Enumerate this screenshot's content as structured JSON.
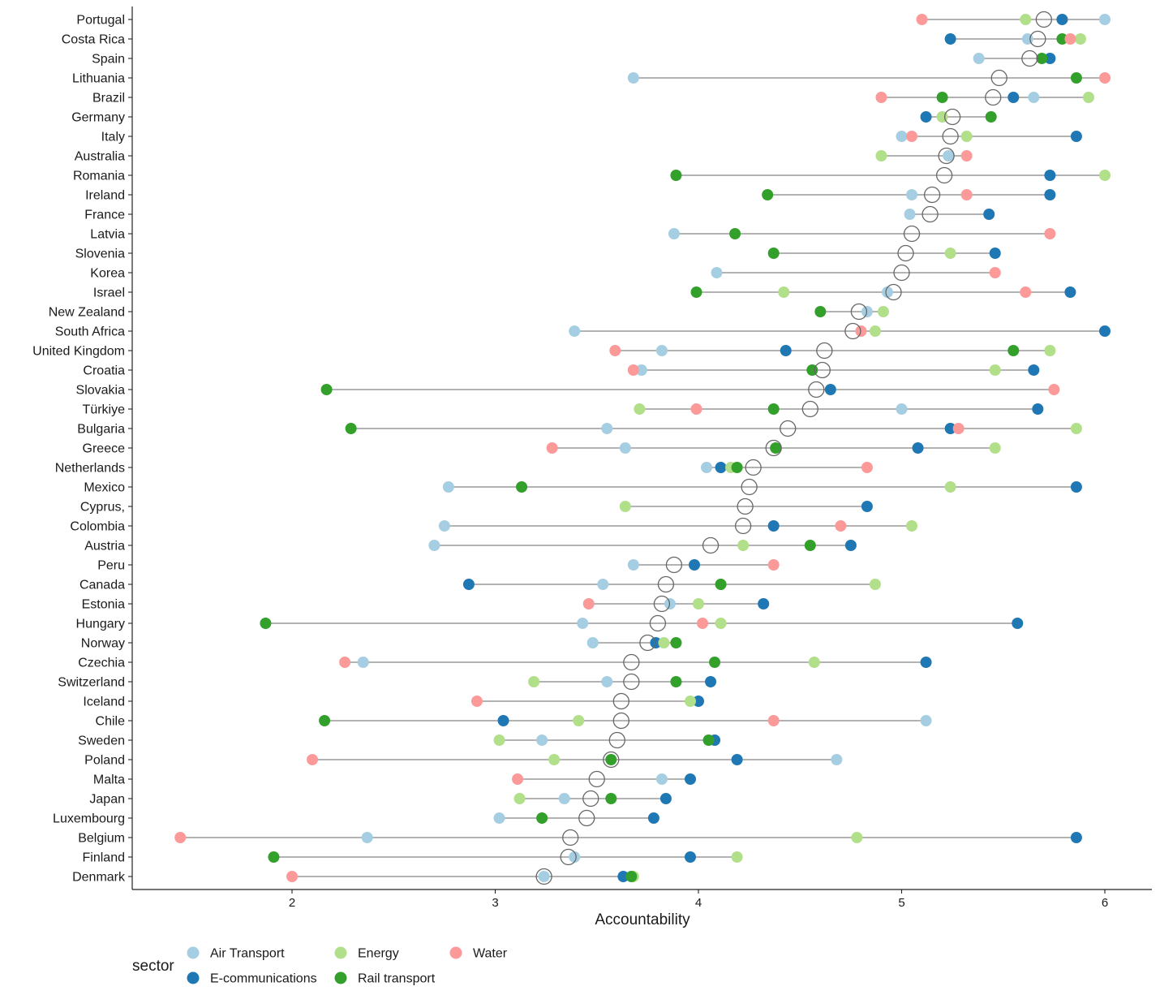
{
  "chart_data": {
    "type": "scatter",
    "xlabel": "Accountability",
    "ylabel": "",
    "title": "",
    "xlim": [
      1.2,
      6.23
    ],
    "xticks": [
      2,
      3,
      4,
      5,
      6
    ],
    "legend": {
      "title": "sector",
      "placement": "bottom-left",
      "items": [
        {
          "key": "air",
          "label": "Air Transport",
          "color": "#a6cee3"
        },
        {
          "key": "ecom",
          "label": "E-communications",
          "color": "#1f78b4"
        },
        {
          "key": "energy",
          "label": "Energy",
          "color": "#b2df8a"
        },
        {
          "key": "rail",
          "label": "Rail transport",
          "color": "#33a02c"
        },
        {
          "key": "water",
          "label": "Water",
          "color": "#fb9a99"
        }
      ]
    },
    "mean_marker": "hollow-circle",
    "rows": [
      {
        "country": "Portugal",
        "mean": 5.7,
        "air": 6.0,
        "ecom": 5.79,
        "energy": 5.61,
        "rail": null,
        "water": 5.1
      },
      {
        "country": "Costa Rica",
        "mean": 5.67,
        "air": 5.62,
        "ecom": 5.24,
        "energy": 5.88,
        "rail": 5.79,
        "water": 5.83
      },
      {
        "country": "Spain",
        "mean": 5.63,
        "air": 5.38,
        "ecom": 5.73,
        "energy": null,
        "rail": 5.69,
        "water": null
      },
      {
        "country": "Lithuania",
        "mean": 5.48,
        "air": 3.68,
        "ecom": null,
        "energy": null,
        "rail": 5.86,
        "water": 6.0
      },
      {
        "country": "Brazil",
        "mean": 5.45,
        "air": 5.65,
        "ecom": 5.55,
        "energy": 5.92,
        "rail": 5.2,
        "water": 4.9
      },
      {
        "country": "Germany",
        "mean": 5.25,
        "air": null,
        "ecom": 5.12,
        "energy": 5.2,
        "rail": 5.44,
        "water": null
      },
      {
        "country": "Italy",
        "mean": 5.24,
        "air": 5.0,
        "ecom": 5.86,
        "energy": 5.32,
        "rail": null,
        "water": 5.05
      },
      {
        "country": "Australia",
        "mean": 5.22,
        "air": 5.23,
        "ecom": null,
        "energy": 4.9,
        "rail": null,
        "water": 5.32
      },
      {
        "country": "Romania",
        "mean": 5.21,
        "air": null,
        "ecom": 5.73,
        "energy": 6.0,
        "rail": 3.89,
        "water": null
      },
      {
        "country": "Ireland",
        "mean": 5.15,
        "air": 5.05,
        "ecom": 5.73,
        "energy": null,
        "rail": 4.34,
        "water": 5.32
      },
      {
        "country": "France",
        "mean": 5.14,
        "air": 5.04,
        "ecom": 5.43,
        "energy": null,
        "rail": null,
        "water": null
      },
      {
        "country": "Latvia",
        "mean": 5.05,
        "air": 3.88,
        "ecom": null,
        "energy": null,
        "rail": 4.18,
        "water": 5.73
      },
      {
        "country": "Slovenia",
        "mean": 5.02,
        "air": null,
        "ecom": 5.46,
        "energy": 5.24,
        "rail": 4.37,
        "water": null
      },
      {
        "country": "Korea",
        "mean": 5.0,
        "air": 4.09,
        "ecom": null,
        "energy": null,
        "rail": null,
        "water": 5.46
      },
      {
        "country": "Israel",
        "mean": 4.96,
        "air": 4.93,
        "ecom": 5.83,
        "energy": 4.42,
        "rail": 3.99,
        "water": 5.61
      },
      {
        "country": "New Zealand",
        "mean": 4.79,
        "air": 4.83,
        "ecom": null,
        "energy": 4.91,
        "rail": 4.6,
        "water": null
      },
      {
        "country": "South Africa",
        "mean": 4.76,
        "air": 3.39,
        "ecom": 6.0,
        "energy": 4.87,
        "rail": null,
        "water": 4.8
      },
      {
        "country": "United Kingdom",
        "mean": 4.62,
        "air": 3.82,
        "ecom": 4.43,
        "energy": 5.73,
        "rail": 5.55,
        "water": 3.59
      },
      {
        "country": "Croatia",
        "mean": 4.61,
        "air": 3.72,
        "ecom": 5.65,
        "energy": 5.46,
        "rail": 4.56,
        "water": 3.68
      },
      {
        "country": "Slovakia",
        "mean": 4.58,
        "air": null,
        "ecom": 4.65,
        "energy": null,
        "rail": 2.17,
        "water": 5.75
      },
      {
        "country": "Türkiye",
        "mean": 4.55,
        "air": 5.0,
        "ecom": 5.67,
        "energy": 3.71,
        "rail": 4.37,
        "water": 3.99
      },
      {
        "country": "Bulgaria",
        "mean": 4.44,
        "air": 3.55,
        "ecom": 5.24,
        "energy": 5.86,
        "rail": 2.29,
        "water": 5.28
      },
      {
        "country": "Greece",
        "mean": 4.37,
        "air": 3.64,
        "ecom": 5.08,
        "energy": 5.46,
        "rail": 4.38,
        "water": 3.28
      },
      {
        "country": "Netherlands",
        "mean": 4.27,
        "air": 4.04,
        "ecom": 4.11,
        "energy": 4.16,
        "rail": 4.19,
        "water": 4.83
      },
      {
        "country": "Mexico",
        "mean": 4.25,
        "air": 2.77,
        "ecom": 5.86,
        "energy": 5.24,
        "rail": 3.13,
        "water": null
      },
      {
        "country": "Cyprus,",
        "mean": 4.23,
        "air": null,
        "ecom": 4.83,
        "energy": 3.64,
        "rail": null,
        "water": null
      },
      {
        "country": "Colombia",
        "mean": 4.22,
        "air": 2.75,
        "ecom": 4.37,
        "energy": 5.05,
        "rail": null,
        "water": 4.7
      },
      {
        "country": "Austria",
        "mean": 4.06,
        "air": 2.7,
        "ecom": 4.75,
        "energy": 4.22,
        "rail": 4.55,
        "water": null
      },
      {
        "country": "Peru",
        "mean": 3.88,
        "air": 3.68,
        "ecom": 3.98,
        "energy": null,
        "rail": null,
        "water": 4.37
      },
      {
        "country": "Canada",
        "mean": 3.84,
        "air": 3.53,
        "ecom": 2.87,
        "energy": 4.87,
        "rail": 4.11,
        "water": null
      },
      {
        "country": "Estonia",
        "mean": 3.82,
        "air": 3.86,
        "ecom": 4.32,
        "energy": 4.0,
        "rail": null,
        "water": 3.46
      },
      {
        "country": "Hungary",
        "mean": 3.8,
        "air": 3.43,
        "ecom": 5.57,
        "energy": 4.11,
        "rail": 1.87,
        "water": 4.02
      },
      {
        "country": "Norway",
        "mean": 3.75,
        "air": 3.48,
        "ecom": 3.79,
        "energy": 3.83,
        "rail": 3.89,
        "water": null
      },
      {
        "country": "Czechia",
        "mean": 3.67,
        "air": 2.35,
        "ecom": 5.12,
        "energy": 4.57,
        "rail": 4.08,
        "water": 2.26
      },
      {
        "country": "Switzerland",
        "mean": 3.67,
        "air": 3.55,
        "ecom": 4.06,
        "energy": 3.19,
        "rail": 3.89,
        "water": null
      },
      {
        "country": "Iceland",
        "mean": 3.62,
        "air": null,
        "ecom": 4.0,
        "energy": 3.96,
        "rail": null,
        "water": 2.91
      },
      {
        "country": "Chile",
        "mean": 3.62,
        "air": 5.12,
        "ecom": 3.04,
        "energy": 3.41,
        "rail": 2.16,
        "water": 4.37
      },
      {
        "country": "Sweden",
        "mean": 3.6,
        "air": 3.23,
        "ecom": 4.08,
        "energy": 3.02,
        "rail": 4.05,
        "water": null
      },
      {
        "country": "Poland",
        "mean": 3.57,
        "air": 4.68,
        "ecom": 4.19,
        "energy": 3.29,
        "rail": 3.57,
        "water": 2.1
      },
      {
        "country": "Malta",
        "mean": 3.5,
        "air": 3.82,
        "ecom": 3.96,
        "energy": null,
        "rail": null,
        "water": 3.11
      },
      {
        "country": "Japan",
        "mean": 3.47,
        "air": 3.34,
        "ecom": 3.84,
        "energy": 3.12,
        "rail": 3.57,
        "water": null
      },
      {
        "country": "Luxembourg",
        "mean": 3.45,
        "air": 3.02,
        "ecom": 3.78,
        "energy": null,
        "rail": 3.23,
        "water": null
      },
      {
        "country": "Belgium",
        "mean": 3.37,
        "air": 2.37,
        "ecom": 5.86,
        "energy": 4.78,
        "rail": null,
        "water": 1.45
      },
      {
        "country": "Finland",
        "mean": 3.36,
        "air": 3.39,
        "ecom": 3.96,
        "energy": 4.19,
        "rail": 1.91,
        "water": null
      },
      {
        "country": "Denmark",
        "mean": 3.24,
        "air": 3.24,
        "ecom": 3.63,
        "energy": 3.68,
        "rail": 3.67,
        "water": 2.0
      }
    ]
  }
}
